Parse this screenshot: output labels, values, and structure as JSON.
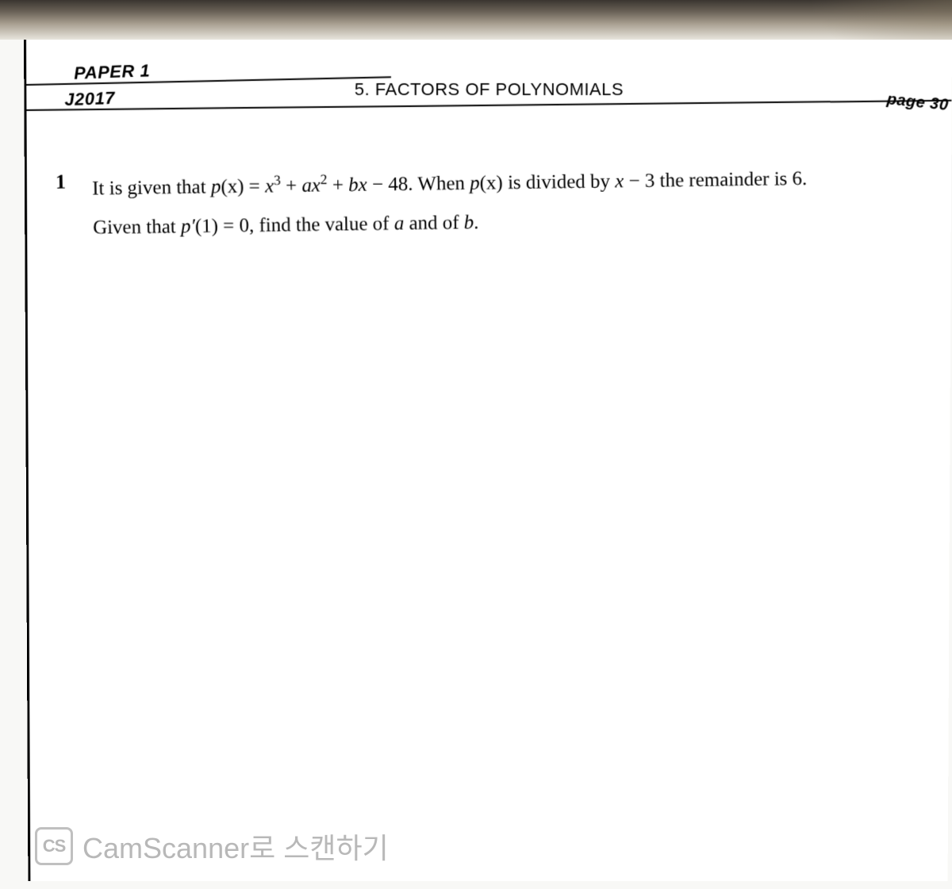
{
  "header": {
    "paper_label": "PAPER 1",
    "exam_code": "J2017",
    "section_title": "5.  FACTORS OF POLYNOMIALS",
    "page_number": "page 30"
  },
  "question": {
    "number": "1",
    "line1_pre": "It is given that ",
    "line1_fn": "p",
    "line1_arg": "(x)",
    "line1_eq": " = ",
    "line1_term1_var": "x",
    "line1_term1_exp": "3",
    "line1_plus1": " + ",
    "line1_term2_a": "a",
    "line1_term2_var": "x",
    "line1_term2_exp": "2",
    "line1_plus2": " + ",
    "line1_term3_b": "b",
    "line1_term3_var": "x",
    "line1_minus": " − 48. When  ",
    "line1_p2": "p",
    "line1_p2arg": "(x)",
    "line1_mid": " is divided by  ",
    "line1_xm3_x": "x",
    "line1_xm3_tail": " − 3   the remainder is 6.",
    "line2_pre": "Given that   ",
    "line2_pprime": "p′",
    "line2_arg": "(1)",
    "line2_eq": " = 0, find the value of ",
    "line2_a": "a",
    "line2_and": " and of ",
    "line2_b": "b",
    "line2_end": "."
  },
  "watermark": {
    "badge": "CS",
    "text": "CamScanner로 스캔하기"
  },
  "colors": {
    "page_bg": "#ffffff",
    "text": "#000000",
    "watermark": "#b8b8b8"
  }
}
